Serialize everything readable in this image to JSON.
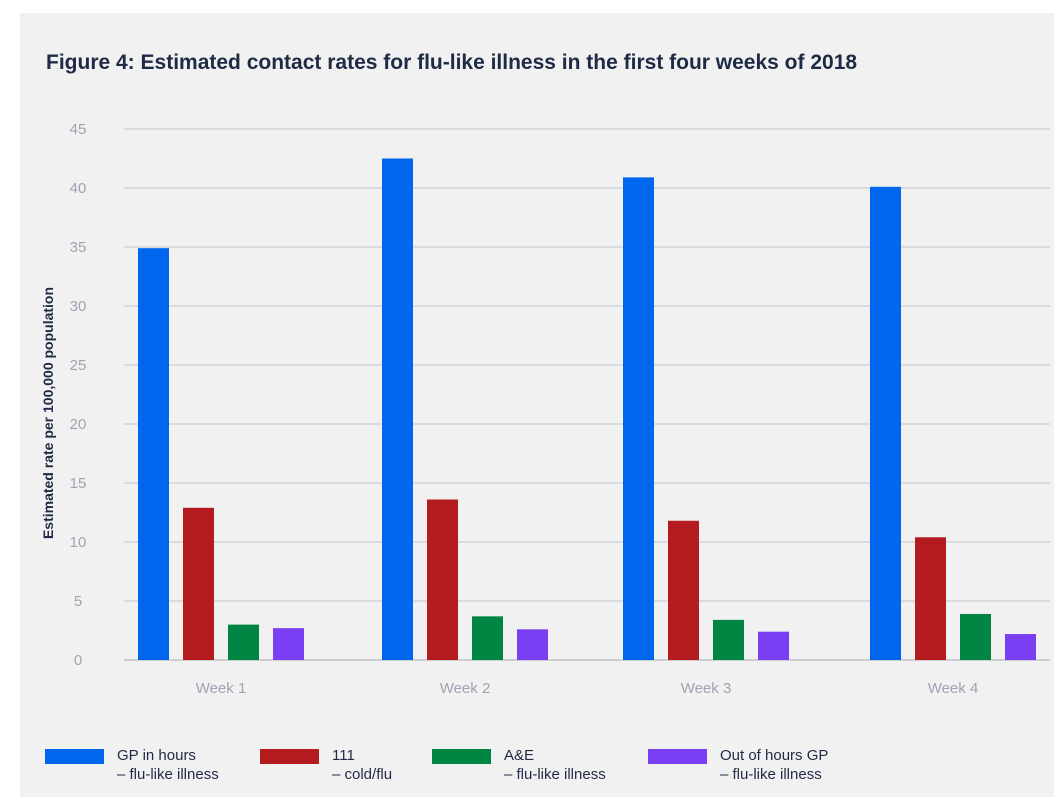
{
  "title": "Figure 4: Estimated contact rates for flu-like illness in the first four weeks of 2018",
  "chart_data": {
    "type": "bar",
    "title": "Figure 4: Estimated contact rates for flu-like illness in the first four weeks of 2018",
    "xlabel": "",
    "ylabel": "Estimated rate per 100,000 population",
    "ylim": [
      0,
      45
    ],
    "yticks": [
      0,
      5,
      10,
      15,
      20,
      25,
      30,
      35,
      40,
      45
    ],
    "grid": true,
    "legend_position": "bottom",
    "categories": [
      "Week 1",
      "Week 2",
      "Week 3",
      "Week 4"
    ],
    "series": [
      {
        "name": "GP in hours",
        "description": "– flu-like illness",
        "color": "#0066ee",
        "values": [
          34.9,
          42.5,
          40.9,
          40.1
        ]
      },
      {
        "name": "111",
        "description": "– cold/flu",
        "color": "#b31b1f",
        "values": [
          12.9,
          13.6,
          11.8,
          10.4
        ]
      },
      {
        "name": "A&E",
        "description": "– flu-like illness",
        "color": "#008542",
        "values": [
          3.0,
          3.7,
          3.4,
          3.9
        ]
      },
      {
        "name": "Out of hours GP",
        "description": "– flu-like illness",
        "color": "#7a3ff2",
        "values": [
          2.7,
          2.6,
          2.4,
          2.2
        ]
      }
    ]
  }
}
